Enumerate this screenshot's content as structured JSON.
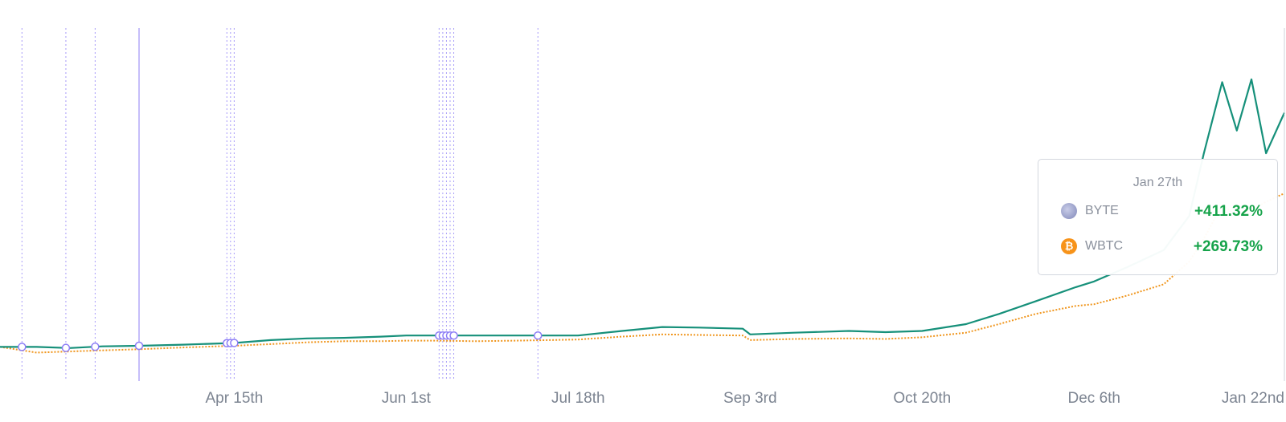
{
  "chart_data": {
    "type": "line",
    "x_ticks": [
      "Apr 15th",
      "Jun 1st",
      "Jul 18th",
      "Sep 3rd",
      "Oct 20th",
      "Dec 6th",
      "Jan 22nd"
    ],
    "series": [
      {
        "name": "BYTE",
        "color": "#16907a",
        "style": "solid",
        "x": [
          "Feb 10th",
          "Feb 20th",
          "Mar 1st",
          "Mar 10th",
          "Mar 20th",
          "Apr 1st",
          "Apr 15th",
          "Apr 25th",
          "May 5th",
          "May 15th",
          "May 25th",
          "Jun 1st",
          "Jun 10th",
          "Jun 20th",
          "Jul 1st",
          "Jul 10th",
          "Jul 18th",
          "Jul 30th",
          "Aug 10th",
          "Aug 20th",
          "Sep 1st",
          "Sep 3rd",
          "Sep 15th",
          "Sep 30th",
          "Oct 10th",
          "Oct 20th",
          "Nov 1st",
          "Nov 10th",
          "Nov 20th",
          "Dec 1st",
          "Dec 6th",
          "Dec 15th",
          "Dec 25th",
          "Jan 1st",
          "Jan 5th",
          "Jan 10th",
          "Jan 14th",
          "Jan 18th",
          "Jan 22nd",
          "Jan 27th"
        ],
        "values": [
          0,
          0,
          -2,
          1,
          2,
          4,
          7,
          12,
          15,
          16,
          18,
          20,
          20,
          20,
          20,
          20,
          20,
          28,
          35,
          34,
          32,
          22,
          25,
          28,
          26,
          28,
          40,
          58,
          80,
          105,
          115,
          140,
          170,
          230,
          340,
          465,
          380,
          470,
          340,
          411.32
        ]
      },
      {
        "name": "WBTC",
        "color": "#f0961e",
        "style": "dotted",
        "x": [
          "Feb 10th",
          "Feb 20th",
          "Mar 1st",
          "Mar 10th",
          "Mar 20th",
          "Apr 1st",
          "Apr 15th",
          "Apr 25th",
          "May 5th",
          "May 15th",
          "May 25th",
          "Jun 1st",
          "Jun 10th",
          "Jun 20th",
          "Jul 1st",
          "Jul 10th",
          "Jul 18th",
          "Jul 30th",
          "Aug 10th",
          "Aug 20th",
          "Sep 1st",
          "Sep 3rd",
          "Sep 15th",
          "Sep 30th",
          "Oct 10th",
          "Oct 20th",
          "Nov 1st",
          "Nov 10th",
          "Nov 20th",
          "Dec 1st",
          "Dec 6th",
          "Dec 15th",
          "Dec 25th",
          "Jan 1st",
          "Jan 5th",
          "Jan 10th",
          "Jan 14th",
          "Jan 18th",
          "Jan 22nd",
          "Jan 27th"
        ],
        "values": [
          0,
          -10,
          -8,
          -6,
          -4,
          -1,
          2,
          5,
          8,
          10,
          10,
          11,
          11,
          10,
          11,
          12,
          13,
          18,
          22,
          21,
          20,
          12,
          14,
          15,
          14,
          17,
          25,
          40,
          58,
          72,
          75,
          90,
          110,
          150,
          190,
          250,
          230,
          240,
          255,
          269.73
        ]
      }
    ],
    "event_markers_x": [
      "Feb 16th",
      "Feb 28th",
      "Mar 8th",
      "Mar 20th",
      "Apr 13th",
      "Apr 14th",
      "Apr 15th",
      "Jun 10th",
      "Jun 11th",
      "Jun 12th",
      "Jun 13th",
      "Jun 14th",
      "Jul 7th"
    ],
    "ylim": [
      -60,
      560
    ],
    "grid": false
  },
  "tooltip": {
    "date": "Jan 27th",
    "rows": [
      {
        "icon": "byte-token-icon",
        "name": "BYTE",
        "value": "+411.32%"
      },
      {
        "icon": "bitcoin-icon",
        "name": "WBTC",
        "value": "+269.73%"
      }
    ]
  },
  "colors": {
    "accent": "#16907a",
    "secondary": "#f0961e",
    "marker": "#8b7cf6",
    "positive": "#16a34a",
    "axis_text": "#7c8491"
  }
}
